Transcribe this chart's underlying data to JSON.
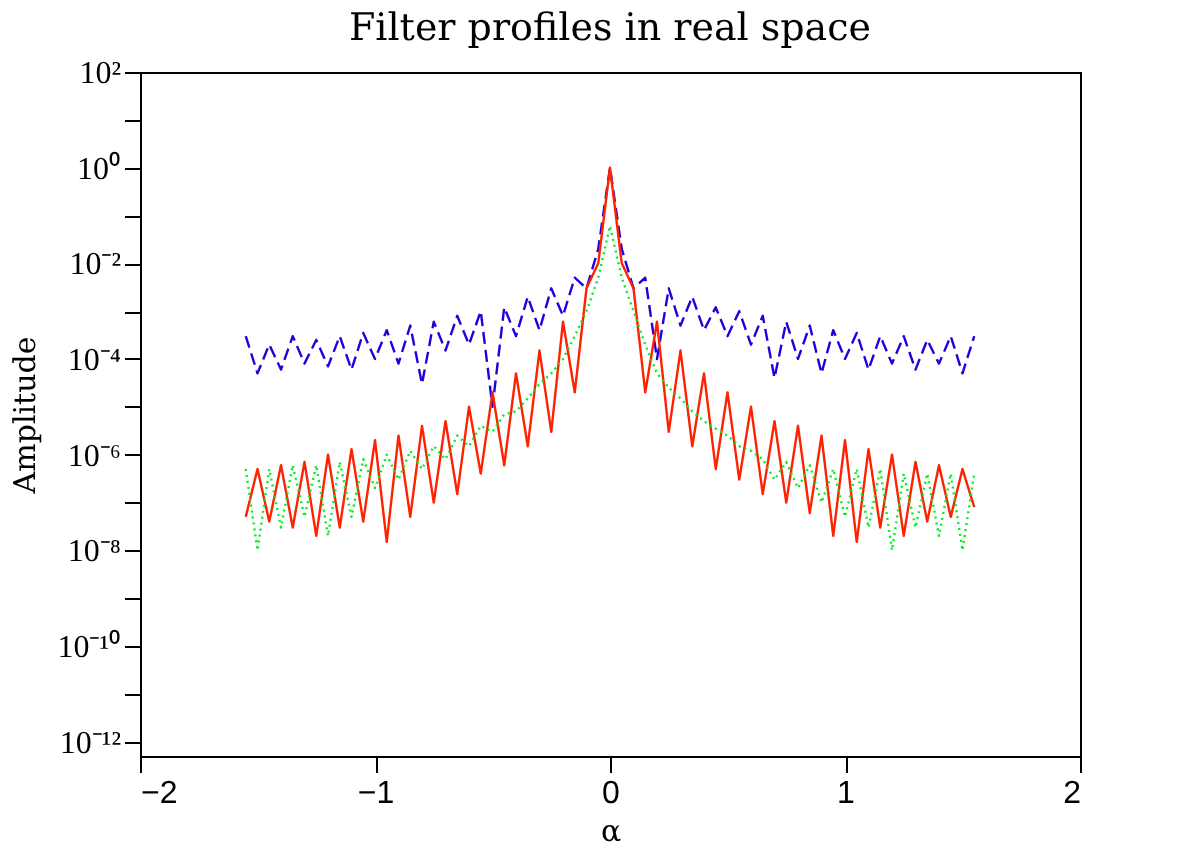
{
  "chart_data": {
    "type": "line",
    "title": "Filter profiles in real space",
    "xlabel": "α",
    "ylabel": "Amplitude",
    "x": [
      -1.55,
      -1.5,
      -1.45,
      -1.4,
      -1.35,
      -1.3,
      -1.25,
      -1.2,
      -1.15,
      -1.1,
      -1.05,
      -1.0,
      -0.95,
      -0.9,
      -0.85,
      -0.8,
      -0.75,
      -0.7,
      -0.65,
      -0.6,
      -0.55,
      -0.5,
      -0.45,
      -0.4,
      -0.35,
      -0.3,
      -0.25,
      -0.2,
      -0.15,
      -0.1,
      -0.05,
      0,
      0.05,
      0.1,
      0.15,
      0.2,
      0.25,
      0.3,
      0.35,
      0.4,
      0.45,
      0.5,
      0.55,
      0.6,
      0.65,
      0.7,
      0.75,
      0.8,
      0.85,
      0.9,
      0.95,
      1.0,
      1.05,
      1.1,
      1.15,
      1.2,
      1.25,
      1.3,
      1.35,
      1.4,
      1.45,
      1.5,
      1.55
    ],
    "series": [
      {
        "color": "#2200dd",
        "line_style": "dashed",
        "values": [
          0.0003,
          5e-05,
          0.0002,
          6e-05,
          0.0003,
          8e-05,
          0.00025,
          7e-05,
          0.0003,
          6e-05,
          0.00035,
          0.0001,
          0.0004,
          8e-05,
          0.0005,
          3e-05,
          0.0006,
          0.00015,
          0.0008,
          0.0002,
          0.001,
          1e-05,
          0.0012,
          0.0003,
          0.002,
          0.0004,
          0.003,
          0.0008,
          0.005,
          0.003,
          0.02,
          1,
          0.02,
          0.003,
          0.005,
          0.0001,
          0.003,
          0.0005,
          0.002,
          0.0004,
          0.0012,
          0.0003,
          0.001,
          0.0002,
          0.0008,
          4e-05,
          0.0006,
          0.0001,
          0.0005,
          5e-05,
          0.0004,
          0.0001,
          0.00035,
          6e-05,
          0.0003,
          8e-05,
          0.0003,
          6e-05,
          0.00025,
          8e-05,
          0.0003,
          5e-05,
          0.0003
        ]
      },
      {
        "color": "#ff2200",
        "line_style": "solid",
        "values": [
          5e-08,
          5e-07,
          4e-08,
          6e-07,
          3e-08,
          7e-07,
          2e-08,
          1e-06,
          3e-08,
          1.3e-06,
          4e-08,
          2e-06,
          1.5e-08,
          2.5e-06,
          5e-08,
          4e-06,
          1e-07,
          5e-06,
          1.5e-07,
          1e-05,
          4e-07,
          2e-05,
          6e-07,
          5e-05,
          1.5e-06,
          0.00015,
          3e-06,
          0.0006,
          2e-05,
          0.003,
          0.01,
          1,
          0.01,
          0.003,
          2e-05,
          0.0006,
          3e-06,
          0.00015,
          1.5e-06,
          5e-05,
          5e-07,
          2e-05,
          3e-07,
          1e-05,
          1.5e-07,
          5e-06,
          1e-07,
          4e-06,
          6e-08,
          2.5e-06,
          2e-08,
          2e-06,
          1.5e-08,
          1.3e-06,
          3e-08,
          1e-06,
          2e-08,
          7e-07,
          4e-08,
          6e-07,
          5e-08,
          5e-07,
          8e-08
        ]
      },
      {
        "color": "#00ee22",
        "line_style": "dotted",
        "values": [
          5e-07,
          1e-08,
          5e-07,
          3e-08,
          6e-07,
          5e-08,
          6e-07,
          2e-08,
          7e-07,
          5e-08,
          8e-07,
          2e-07,
          1e-06,
          3e-07,
          1.2e-06,
          5e-07,
          1.5e-06,
          8e-07,
          2.5e-06,
          1.5e-06,
          4e-06,
          3e-06,
          7e-06,
          8e-06,
          1.5e-05,
          3e-05,
          5e-05,
          0.0001,
          0.0003,
          0.001,
          0.005,
          0.06,
          0.005,
          0.001,
          0.0002,
          5e-05,
          2.5e-05,
          1.5e-05,
          8e-06,
          5e-06,
          3.5e-06,
          2.5e-06,
          1.5e-06,
          1.2e-06,
          8e-07,
          3e-07,
          7e-07,
          2e-07,
          6e-07,
          1e-07,
          5e-07,
          5e-08,
          5e-07,
          3e-08,
          5e-07,
          1e-08,
          4e-07,
          3e-08,
          4e-07,
          2e-08,
          4e-07,
          1e-08,
          4e-07
        ]
      }
    ],
    "xlim": [
      -2,
      2
    ],
    "xticks": [
      -2,
      -1,
      0,
      1,
      2
    ],
    "ylim": [
      5e-13,
      100
    ],
    "log": true,
    "grid": false,
    "yticks": [
      {
        "value": 100,
        "label": "10²"
      },
      {
        "value": 10,
        "label": null
      },
      {
        "value": 1,
        "label": "10⁰"
      },
      {
        "value": 0.1,
        "label": null
      },
      {
        "value": 0.01,
        "label": "10⁻²"
      },
      {
        "value": 0.001,
        "label": null
      },
      {
        "value": 0.0001,
        "label": "10⁻⁴"
      },
      {
        "value": 1e-05,
        "label": null
      },
      {
        "value": 1e-06,
        "label": "10⁻⁶"
      },
      {
        "value": 1e-07,
        "label": null
      },
      {
        "value": 1e-08,
        "label": "10⁻⁸"
      },
      {
        "value": 1e-09,
        "label": null
      },
      {
        "value": 1e-10,
        "label": "10⁻¹⁰"
      },
      {
        "value": 1e-11,
        "label": null
      },
      {
        "value": 1e-12,
        "label": "10⁻¹²"
      }
    ]
  }
}
